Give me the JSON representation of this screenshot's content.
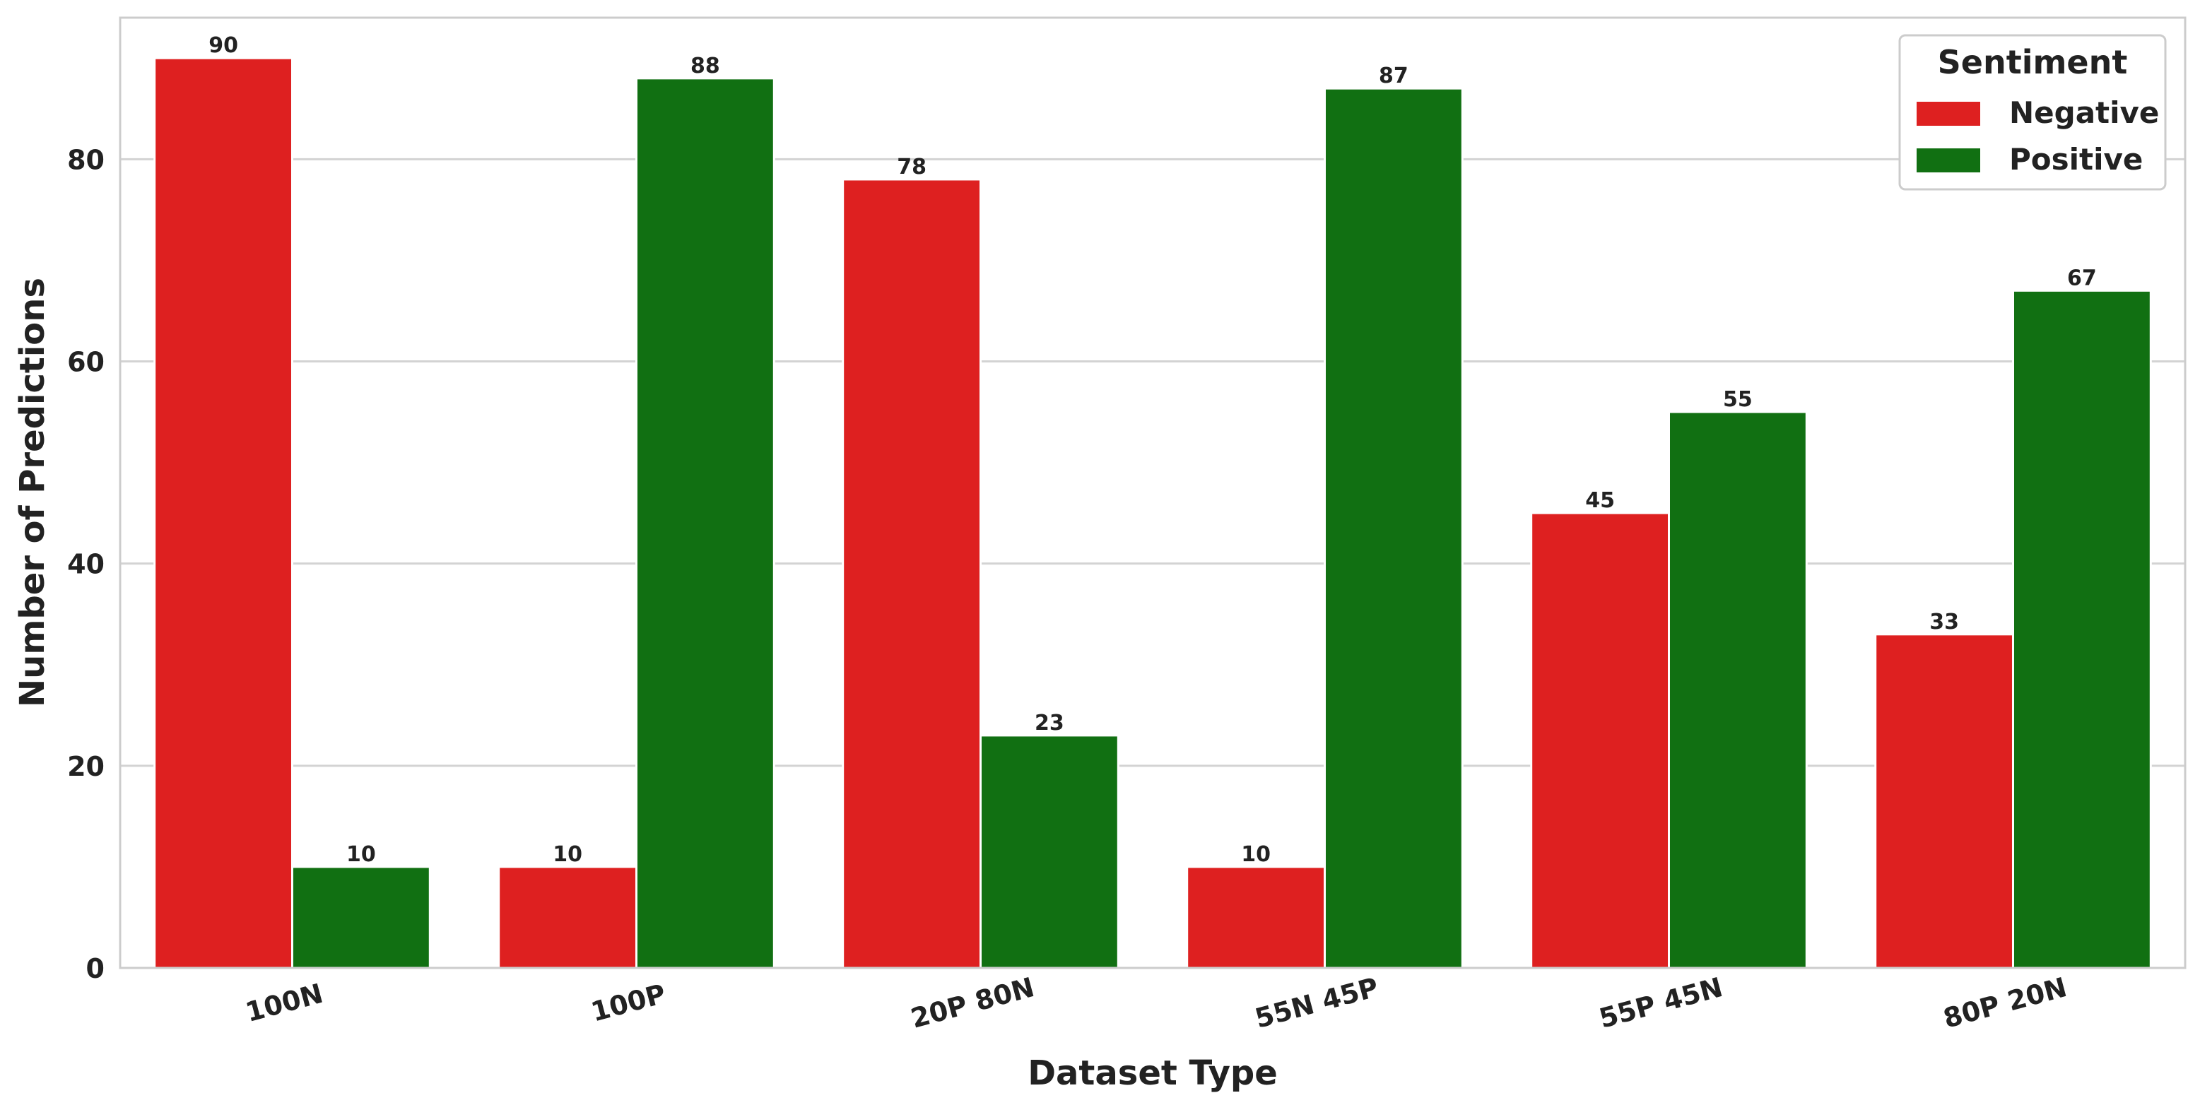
{
  "chart_data": {
    "type": "bar",
    "xlabel": "Dataset Type",
    "ylabel": "Number of Predictions",
    "categories": [
      "100N",
      "100P",
      "20P 80N",
      "55N 45P",
      "55P 45N",
      "80P 20N"
    ],
    "series": [
      {
        "name": "Negative",
        "values": [
          90,
          10,
          78,
          10,
          45,
          33
        ],
        "color": "#de2020"
      },
      {
        "name": "Positive",
        "values": [
          10,
          88,
          23,
          87,
          55,
          67
        ],
        "color": "#117012"
      }
    ],
    "ylim": [
      0,
      94
    ],
    "yticks": [
      0,
      20,
      40,
      60,
      80
    ],
    "grid": true,
    "legend": {
      "title": "Sentiment",
      "position": "top-right"
    }
  }
}
